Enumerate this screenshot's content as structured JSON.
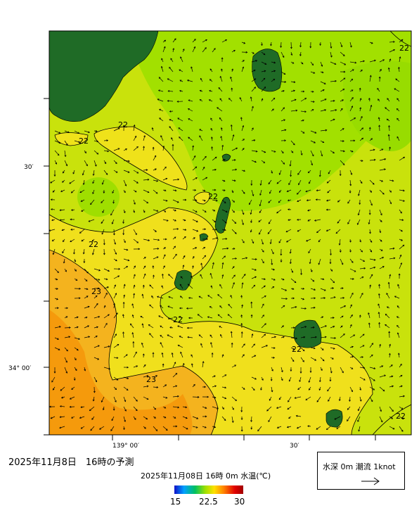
{
  "map": {
    "lat_labels": [
      "30′",
      "34° 00′"
    ],
    "lon_labels": [
      "139° 00′",
      "30′"
    ],
    "contour_labels": [
      "22",
      "22",
      "22",
      "22",
      "22",
      "22",
      "22",
      "23",
      "23",
      "22"
    ]
  },
  "caption": {
    "title": "2025年11月8日　16時の予測",
    "subtitle": "2025年11月08日 16時 0m 水温(℃)"
  },
  "colorbar": {
    "min": "15",
    "mid": "22.5",
    "max": "30",
    "colors": [
      "#1010c8",
      "#00a0ff",
      "#00c060",
      "#a0e000",
      "#ffe000",
      "#ff8000",
      "#e00000",
      "#a00000"
    ]
  },
  "legend": {
    "text": "水深 0m 潮流 1knot"
  },
  "colors": {
    "land": "#1f6b26",
    "sea_21": "#9ee000",
    "sea_22": "#cde40a",
    "sea_22_5": "#f0e21a",
    "sea_23": "#f4b21c",
    "sea_23_5": "#f59a0c"
  }
}
